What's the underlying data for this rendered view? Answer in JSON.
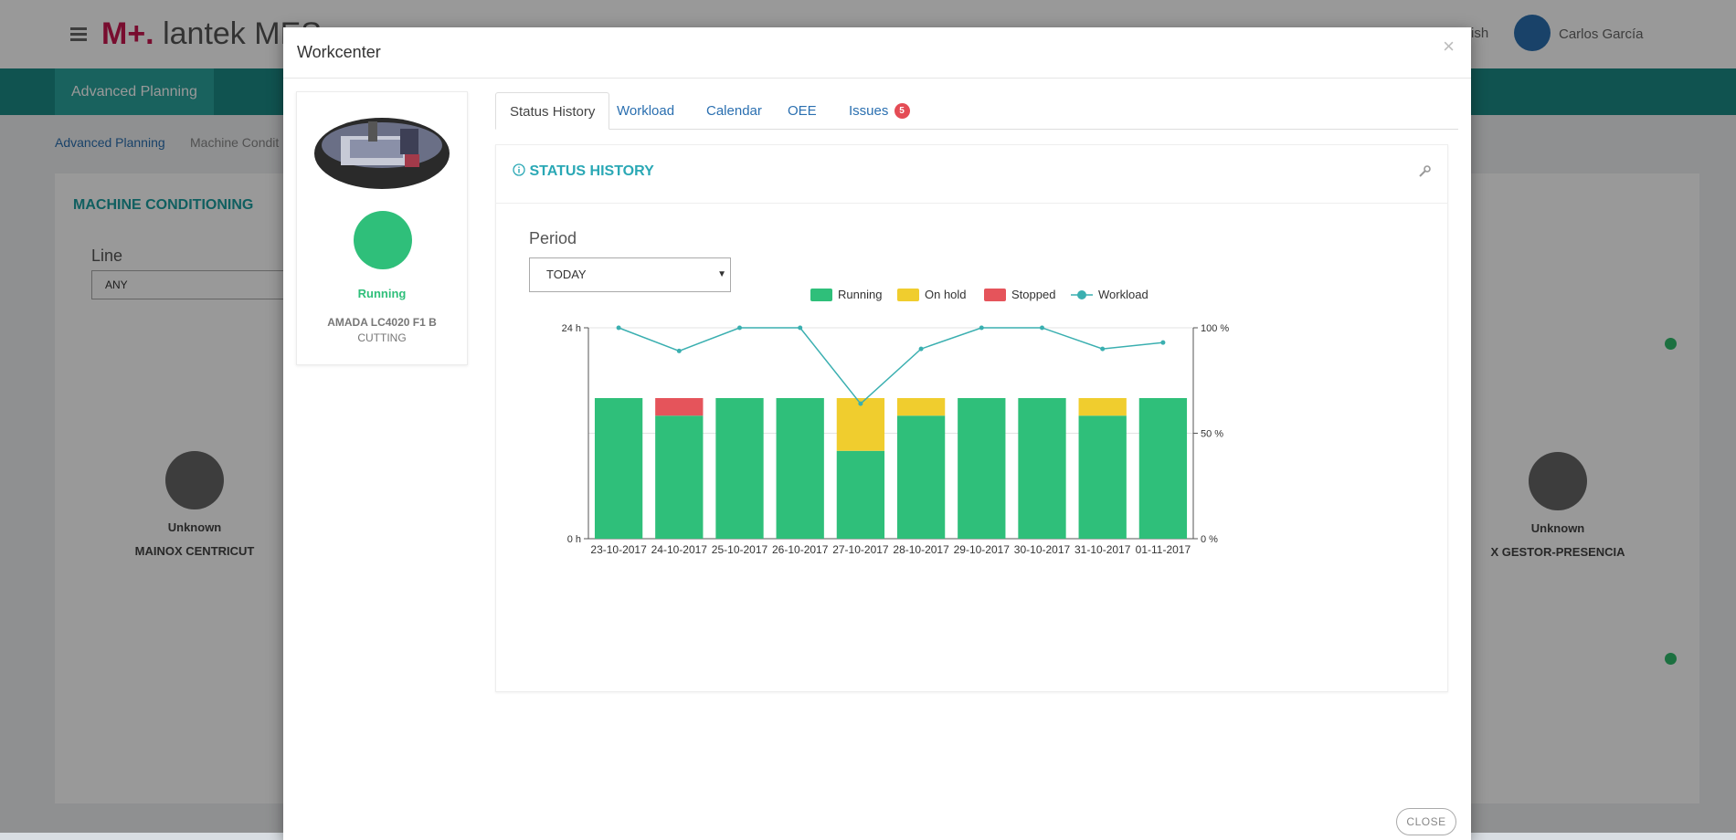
{
  "app": {
    "logo_prefix": "M+.",
    "logo_text": "lantek MES",
    "user_name": "Carlos García",
    "language": "ish"
  },
  "nav": {
    "active_item": "Advanced Planning"
  },
  "breadcrumb": {
    "items": [
      "Advanced Planning",
      "Machine Condit"
    ]
  },
  "background": {
    "section_title": "MACHINE CONDITIONING",
    "line_label": "Line",
    "line_value": "ANY",
    "cards": [
      {
        "status": "Unknown",
        "name": "MAINOX CENTRICUT"
      },
      {
        "status": "Unknown",
        "name": "X GESTOR-PRESENCIA"
      }
    ]
  },
  "modal": {
    "title": "Workcenter",
    "close_label": "CLOSE",
    "workcenter": {
      "status": "Running",
      "name": "AMADA LC4020 F1 B",
      "type": "CUTTING",
      "status_color": "#2fbf7a"
    },
    "tabs": [
      {
        "label": "Status History",
        "active": true
      },
      {
        "label": "Workload"
      },
      {
        "label": "Calendar"
      },
      {
        "label": "OEE"
      },
      {
        "label": "Issues",
        "badge": "5"
      }
    ],
    "panel_title": "STATUS HISTORY",
    "period_label": "Period",
    "period_value": "TODAY"
  },
  "chart_data": {
    "type": "bar",
    "stacked": true,
    "categories": [
      "23-10-2017",
      "24-10-2017",
      "25-10-2017",
      "26-10-2017",
      "27-10-2017",
      "28-10-2017",
      "29-10-2017",
      "30-10-2017",
      "31-10-2017",
      "01-11-2017"
    ],
    "series": [
      {
        "name": "Running",
        "color": "#2fbf7a",
        "values": [
          16,
          14,
          16,
          16,
          10,
          14,
          16,
          16,
          14,
          16
        ]
      },
      {
        "name": "On hold",
        "color": "#f0cd2e",
        "values": [
          0,
          0,
          0,
          0,
          6,
          2,
          0,
          0,
          2,
          0
        ]
      },
      {
        "name": "Stopped",
        "color": "#e5545b",
        "values": [
          0,
          2,
          0,
          0,
          0,
          0,
          0,
          0,
          0,
          0
        ]
      }
    ],
    "line_series": {
      "name": "Workload",
      "color": "#3aafb0",
      "values": [
        100,
        89,
        100,
        100,
        64,
        90,
        100,
        100,
        90,
        93
      ]
    },
    "y_left": {
      "ticks": [
        "0 h",
        "24 h"
      ],
      "range": [
        0,
        24
      ]
    },
    "y_right": {
      "ticks": [
        "0 %",
        "50 %",
        "100 %"
      ],
      "range": [
        0,
        100
      ]
    },
    "legend_position": "top-center",
    "grid": true
  }
}
